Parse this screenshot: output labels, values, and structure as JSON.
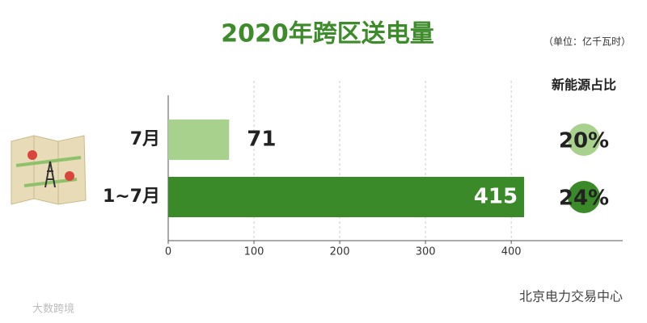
{
  "chart_data": {
    "type": "bar",
    "orientation": "horizontal",
    "title": "2020年跨区送电量",
    "unit": "（单位：亿千瓦时）",
    "categories": [
      "7月",
      "1~7月"
    ],
    "values": [
      71,
      415
    ],
    "colors": [
      "#a9d18e",
      "#3b8a2a"
    ],
    "xlim": [
      0,
      530
    ],
    "xticks": [
      0,
      100,
      200,
      300,
      400
    ],
    "grid": true,
    "share": {
      "title": "新能源占比",
      "values": [
        20,
        24
      ],
      "value_labels": [
        "20%",
        "24%"
      ],
      "colors": [
        "#a9d18e",
        "#3b8a2a"
      ]
    },
    "watermarks": [
      "北京电力交易中心",
      "大数跨境"
    ]
  }
}
